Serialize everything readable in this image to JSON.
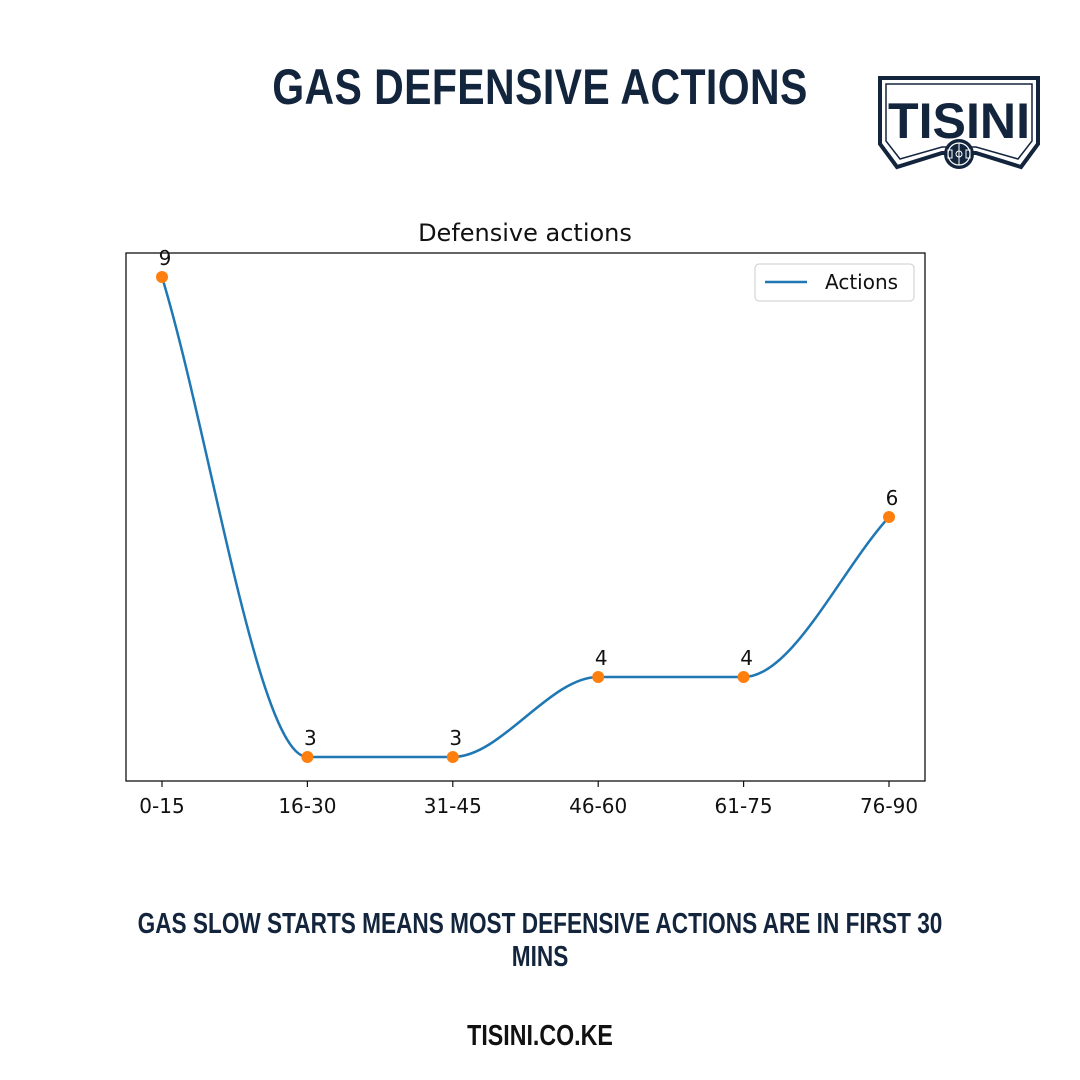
{
  "header": {
    "title": "GAS DEFENSIVE ACTIONS"
  },
  "logo": {
    "text": "TISINI",
    "icon": "football-pitch-icon",
    "color": "#13253d"
  },
  "chart_data": {
    "type": "line",
    "title": "Defensive actions",
    "categories": [
      "0-15",
      "16-30",
      "31-45",
      "46-60",
      "61-75",
      "76-90"
    ],
    "series": [
      {
        "name": "Actions",
        "values": [
          9,
          3,
          3,
          4,
          4,
          6
        ],
        "line_color": "#1f77b4",
        "marker_color": "#ff7f0e"
      }
    ],
    "data_labels": [
      "9",
      "3",
      "3",
      "4",
      "4",
      "6"
    ],
    "smoothed": true,
    "legend": "top-right",
    "grid": false,
    "yticks_shown": false
  },
  "caption": "GAS SLOW STARTS MEANS MOST DEFENSIVE ACTIONS ARE IN FIRST 30 MINS",
  "footer": "TISINI.CO.KE"
}
